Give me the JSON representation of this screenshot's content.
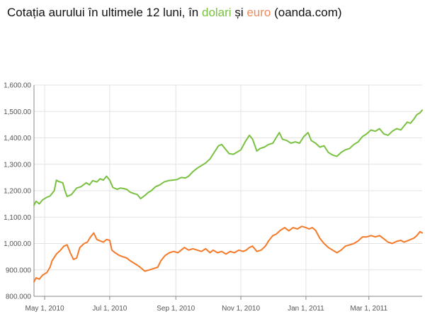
{
  "title": {
    "prefix": "Cotația aurului în ultimele 12 luni, în ",
    "usd_word": "dolari",
    "conjunction": " și ",
    "eur_word": "euro",
    "suffix": " (oanda.com)"
  },
  "colors": {
    "usd": "#7ac142",
    "eur": "#f47a2a",
    "grid": "#e3e3e3",
    "axis": "#888888"
  },
  "chart_data": {
    "type": "line",
    "title": "Cotația aurului în ultimele 12 luni, în dolari și euro (oanda.com)",
    "xlabel": "",
    "ylabel": "",
    "x_range": [
      "2010-04-21",
      "2011-04-20"
    ],
    "ylim": [
      800,
      1600
    ],
    "grid": true,
    "legend": "none",
    "y_ticks": [
      800,
      900,
      1000,
      1100,
      1200,
      1300,
      1400,
      1500,
      1600
    ],
    "y_tick_labels": [
      "800.000",
      "900.000",
      "1,000.00",
      "1,100.00",
      "1,200.00",
      "1,300.00",
      "1,400.00",
      "1,500.00",
      "1,600.00"
    ],
    "x_ticks": [
      {
        "date": "2010-05-01",
        "label": "May 1, 2010"
      },
      {
        "date": "2010-07-01",
        "label": "Jul 1, 2010"
      },
      {
        "date": "2010-09-01",
        "label": "Sep 1, 2010"
      },
      {
        "date": "2010-11-01",
        "label": "Nov 1, 2010"
      },
      {
        "date": "2011-01-01",
        "label": "Jan 1, 2011"
      },
      {
        "date": "2011-03-01",
        "label": "Mar 1, 2011"
      }
    ],
    "series": [
      {
        "key": "usd",
        "values": [
          [
            "2010-04-21",
            1145
          ],
          [
            "2010-04-23",
            1160
          ],
          [
            "2010-04-26",
            1150
          ],
          [
            "2010-04-29",
            1165
          ],
          [
            "2010-05-03",
            1175
          ],
          [
            "2010-05-06",
            1180
          ],
          [
            "2010-05-10",
            1200
          ],
          [
            "2010-05-12",
            1240
          ],
          [
            "2010-05-14",
            1235
          ],
          [
            "2010-05-18",
            1230
          ],
          [
            "2010-05-20",
            1200
          ],
          [
            "2010-05-22",
            1178
          ],
          [
            "2010-05-26",
            1185
          ],
          [
            "2010-05-31",
            1210
          ],
          [
            "2010-06-04",
            1215
          ],
          [
            "2010-06-09",
            1230
          ],
          [
            "2010-06-12",
            1222
          ],
          [
            "2010-06-15",
            1238
          ],
          [
            "2010-06-19",
            1233
          ],
          [
            "2010-06-22",
            1245
          ],
          [
            "2010-06-25",
            1240
          ],
          [
            "2010-06-28",
            1255
          ],
          [
            "2010-07-01",
            1240
          ],
          [
            "2010-07-04",
            1212
          ],
          [
            "2010-07-08",
            1205
          ],
          [
            "2010-07-11",
            1210
          ],
          [
            "2010-07-14",
            1208
          ],
          [
            "2010-07-17",
            1205
          ],
          [
            "2010-07-20",
            1195
          ],
          [
            "2010-07-23",
            1190
          ],
          [
            "2010-07-27",
            1185
          ],
          [
            "2010-07-30",
            1170
          ],
          [
            "2010-08-03",
            1182
          ],
          [
            "2010-08-06",
            1193
          ],
          [
            "2010-08-09",
            1200
          ],
          [
            "2010-08-13",
            1215
          ],
          [
            "2010-08-17",
            1222
          ],
          [
            "2010-08-21",
            1233
          ],
          [
            "2010-08-25",
            1238
          ],
          [
            "2010-08-29",
            1240
          ],
          [
            "2010-09-02",
            1242
          ],
          [
            "2010-09-06",
            1250
          ],
          [
            "2010-09-10",
            1248
          ],
          [
            "2010-09-13",
            1255
          ],
          [
            "2010-09-17",
            1272
          ],
          [
            "2010-09-21",
            1285
          ],
          [
            "2010-09-25",
            1295
          ],
          [
            "2010-09-29",
            1305
          ],
          [
            "2010-10-03",
            1320
          ],
          [
            "2010-10-07",
            1345
          ],
          [
            "2010-10-11",
            1370
          ],
          [
            "2010-10-14",
            1375
          ],
          [
            "2010-10-18",
            1355
          ],
          [
            "2010-10-21",
            1340
          ],
          [
            "2010-10-25",
            1338
          ],
          [
            "2010-10-28",
            1345
          ],
          [
            "2010-11-01",
            1355
          ],
          [
            "2010-11-05",
            1385
          ],
          [
            "2010-11-09",
            1410
          ],
          [
            "2010-11-12",
            1395
          ],
          [
            "2010-11-16",
            1350
          ],
          [
            "2010-11-19",
            1360
          ],
          [
            "2010-11-23",
            1365
          ],
          [
            "2010-11-27",
            1375
          ],
          [
            "2010-12-01",
            1380
          ],
          [
            "2010-12-04",
            1400
          ],
          [
            "2010-12-07",
            1420
          ],
          [
            "2010-12-10",
            1395
          ],
          [
            "2010-12-14",
            1390
          ],
          [
            "2010-12-18",
            1380
          ],
          [
            "2010-12-22",
            1385
          ],
          [
            "2010-12-26",
            1380
          ],
          [
            "2010-12-30",
            1405
          ],
          [
            "2011-01-03",
            1420
          ],
          [
            "2011-01-06",
            1390
          ],
          [
            "2011-01-10",
            1380
          ],
          [
            "2011-01-14",
            1365
          ],
          [
            "2011-01-18",
            1370
          ],
          [
            "2011-01-22",
            1345
          ],
          [
            "2011-01-26",
            1335
          ],
          [
            "2011-01-30",
            1330
          ],
          [
            "2011-02-03",
            1345
          ],
          [
            "2011-02-07",
            1355
          ],
          [
            "2011-02-11",
            1360
          ],
          [
            "2011-02-15",
            1375
          ],
          [
            "2011-02-19",
            1385
          ],
          [
            "2011-02-23",
            1405
          ],
          [
            "2011-02-27",
            1415
          ],
          [
            "2011-03-03",
            1430
          ],
          [
            "2011-03-07",
            1425
          ],
          [
            "2011-03-11",
            1435
          ],
          [
            "2011-03-15",
            1415
          ],
          [
            "2011-03-19",
            1410
          ],
          [
            "2011-03-23",
            1425
          ],
          [
            "2011-03-27",
            1435
          ],
          [
            "2011-03-31",
            1430
          ],
          [
            "2011-04-03",
            1445
          ],
          [
            "2011-04-06",
            1460
          ],
          [
            "2011-04-09",
            1455
          ],
          [
            "2011-04-12",
            1470
          ],
          [
            "2011-04-15",
            1488
          ],
          [
            "2011-04-18",
            1495
          ],
          [
            "2011-04-20",
            1505
          ]
        ]
      },
      {
        "key": "eur",
        "values": [
          [
            "2010-04-21",
            855
          ],
          [
            "2010-04-23",
            870
          ],
          [
            "2010-04-26",
            865
          ],
          [
            "2010-04-29",
            880
          ],
          [
            "2010-05-03",
            890
          ],
          [
            "2010-05-06",
            910
          ],
          [
            "2010-05-08",
            935
          ],
          [
            "2010-05-12",
            960
          ],
          [
            "2010-05-16",
            975
          ],
          [
            "2010-05-19",
            990
          ],
          [
            "2010-05-22",
            995
          ],
          [
            "2010-05-25",
            965
          ],
          [
            "2010-05-28",
            940
          ],
          [
            "2010-05-31",
            945
          ],
          [
            "2010-06-03",
            985
          ],
          [
            "2010-06-07",
            1000
          ],
          [
            "2010-06-10",
            1005
          ],
          [
            "2010-06-13",
            1025
          ],
          [
            "2010-06-16",
            1040
          ],
          [
            "2010-06-19",
            1015
          ],
          [
            "2010-06-22",
            1010
          ],
          [
            "2010-06-25",
            1005
          ],
          [
            "2010-06-28",
            1015
          ],
          [
            "2010-07-01",
            1012
          ],
          [
            "2010-07-03",
            975
          ],
          [
            "2010-07-06",
            965
          ],
          [
            "2010-07-10",
            955
          ],
          [
            "2010-07-13",
            950
          ],
          [
            "2010-07-17",
            945
          ],
          [
            "2010-07-20",
            935
          ],
          [
            "2010-07-24",
            925
          ],
          [
            "2010-07-28",
            915
          ],
          [
            "2010-07-31",
            905
          ],
          [
            "2010-08-03",
            895
          ],
          [
            "2010-08-07",
            900
          ],
          [
            "2010-08-11",
            905
          ],
          [
            "2010-08-15",
            910
          ],
          [
            "2010-08-18",
            935
          ],
          [
            "2010-08-22",
            955
          ],
          [
            "2010-08-26",
            965
          ],
          [
            "2010-08-30",
            970
          ],
          [
            "2010-09-03",
            965
          ],
          [
            "2010-09-06",
            975
          ],
          [
            "2010-09-09",
            985
          ],
          [
            "2010-09-13",
            975
          ],
          [
            "2010-09-17",
            980
          ],
          [
            "2010-09-21",
            975
          ],
          [
            "2010-09-25",
            970
          ],
          [
            "2010-09-29",
            980
          ],
          [
            "2010-10-03",
            965
          ],
          [
            "2010-10-06",
            975
          ],
          [
            "2010-10-10",
            965
          ],
          [
            "2010-10-14",
            970
          ],
          [
            "2010-10-18",
            960
          ],
          [
            "2010-10-22",
            970
          ],
          [
            "2010-10-26",
            965
          ],
          [
            "2010-10-30",
            975
          ],
          [
            "2010-11-03",
            970
          ],
          [
            "2010-11-06",
            975
          ],
          [
            "2010-11-09",
            985
          ],
          [
            "2010-11-12",
            990
          ],
          [
            "2010-11-16",
            970
          ],
          [
            "2010-11-20",
            975
          ],
          [
            "2010-11-24",
            990
          ],
          [
            "2010-11-27",
            1010
          ],
          [
            "2010-12-01",
            1030
          ],
          [
            "2010-12-04",
            1035
          ],
          [
            "2010-12-08",
            1050
          ],
          [
            "2010-12-12",
            1060
          ],
          [
            "2010-12-16",
            1048
          ],
          [
            "2010-12-20",
            1060
          ],
          [
            "2010-12-24",
            1055
          ],
          [
            "2010-12-28",
            1065
          ],
          [
            "2011-01-01",
            1060
          ],
          [
            "2011-01-04",
            1055
          ],
          [
            "2011-01-07",
            1060
          ],
          [
            "2011-01-10",
            1050
          ],
          [
            "2011-01-14",
            1020
          ],
          [
            "2011-01-18",
            1000
          ],
          [
            "2011-01-22",
            985
          ],
          [
            "2011-01-26",
            975
          ],
          [
            "2011-01-30",
            965
          ],
          [
            "2011-02-03",
            975
          ],
          [
            "2011-02-07",
            990
          ],
          [
            "2011-02-11",
            995
          ],
          [
            "2011-02-15",
            1000
          ],
          [
            "2011-02-19",
            1010
          ],
          [
            "2011-02-23",
            1025
          ],
          [
            "2011-02-27",
            1025
          ],
          [
            "2011-03-03",
            1030
          ],
          [
            "2011-03-07",
            1025
          ],
          [
            "2011-03-11",
            1030
          ],
          [
            "2011-03-15",
            1018
          ],
          [
            "2011-03-19",
            1005
          ],
          [
            "2011-03-23",
            1000
          ],
          [
            "2011-03-27",
            1008
          ],
          [
            "2011-03-31",
            1012
          ],
          [
            "2011-04-03",
            1005
          ],
          [
            "2011-04-06",
            1010
          ],
          [
            "2011-04-09",
            1015
          ],
          [
            "2011-04-12",
            1020
          ],
          [
            "2011-04-15",
            1030
          ],
          [
            "2011-04-18",
            1045
          ],
          [
            "2011-04-20",
            1040
          ]
        ]
      }
    ]
  }
}
